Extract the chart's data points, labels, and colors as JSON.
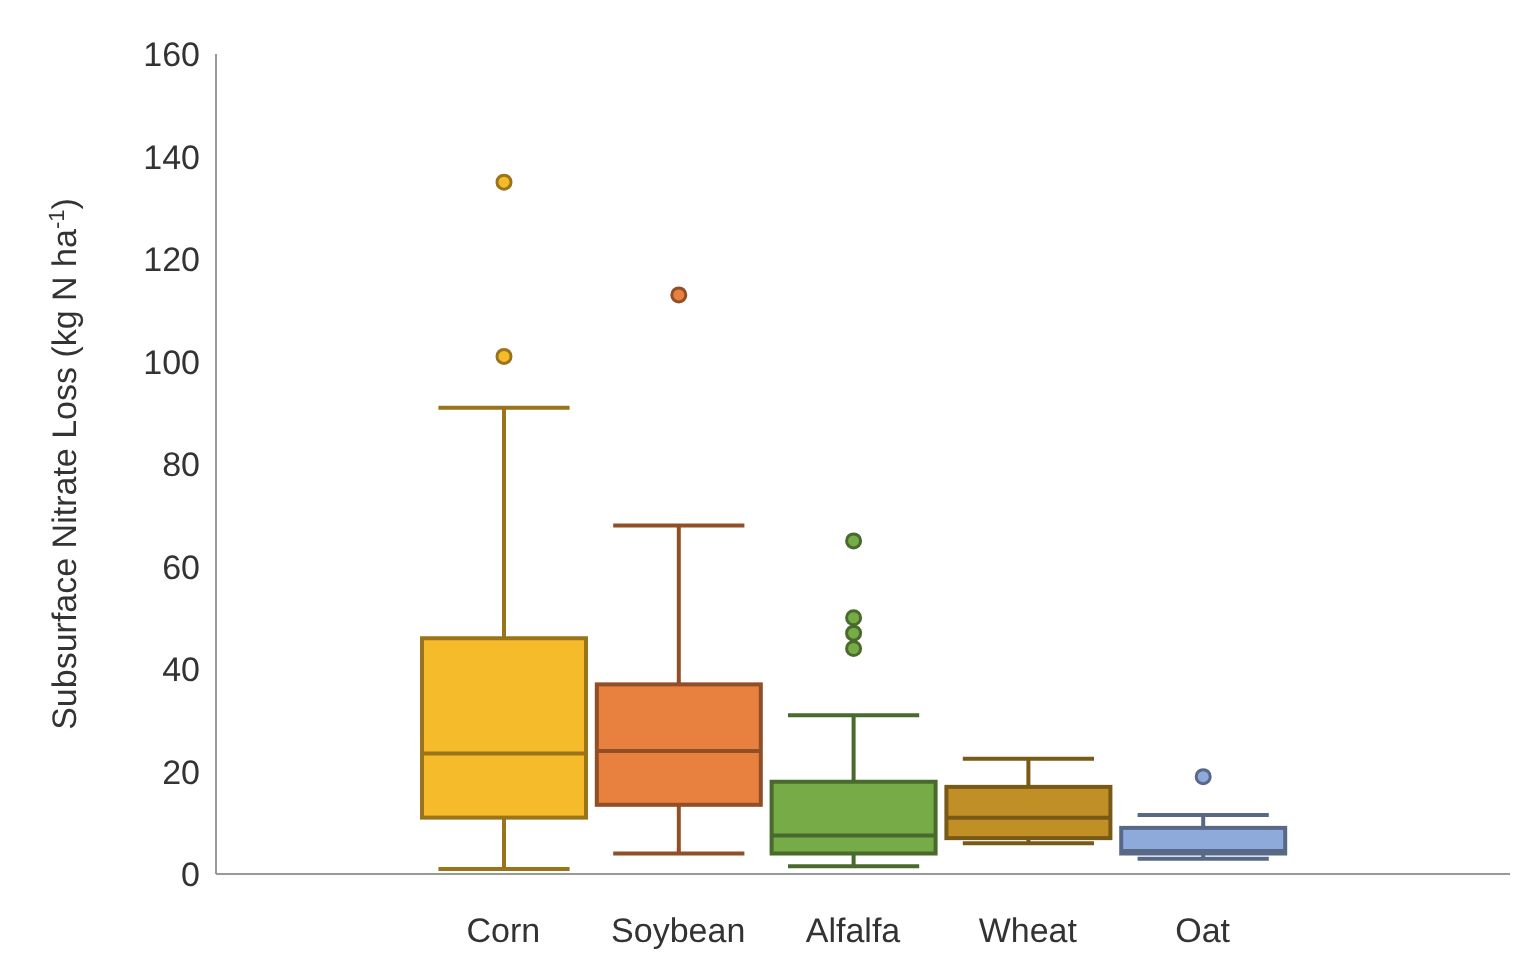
{
  "chart_data": {
    "type": "box",
    "ylabel": "Subsurface Nitrate Loss (kg N ha$^{-1}$)",
    "categories": [
      "Corn",
      "Soybean",
      "Alfalfa",
      "Wheat",
      "Oat"
    ],
    "colors": [
      "#f6bb2b",
      "#e8803f",
      "#76ab48",
      "#c08f26",
      "#8eaadb"
    ],
    "boxes": [
      {
        "low": 1,
        "q1": 11,
        "median": 23.5,
        "q3": 46,
        "high": 91,
        "outliers": [
          101,
          135
        ]
      },
      {
        "low": 4,
        "q1": 13.5,
        "median": 24,
        "q3": 37,
        "high": 68,
        "outliers": [
          113
        ]
      },
      {
        "low": 1.5,
        "q1": 4,
        "median": 7.5,
        "q3": 18,
        "high": 31,
        "outliers": [
          44,
          47,
          50,
          65
        ]
      },
      {
        "low": 6,
        "q1": 7,
        "median": 11,
        "q3": 17,
        "high": 22.5
      },
      {
        "low": 3,
        "q1": 4,
        "median": 4.5,
        "q3": 9,
        "high": 11.5,
        "outliers": [
          19
        ]
      }
    ],
    "ylim": [
      0,
      160
    ],
    "yticks": [
      0,
      20,
      40,
      60,
      80,
      100,
      120,
      140,
      160
    ]
  }
}
